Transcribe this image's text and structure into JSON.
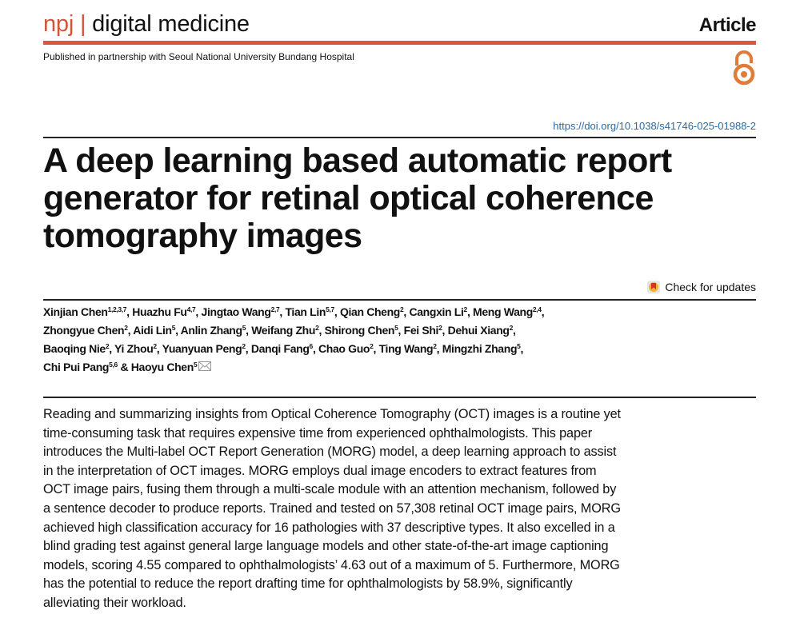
{
  "header": {
    "journal_prefix": "npj",
    "journal_separator": "|",
    "journal_name": "digital medicine",
    "article_type": "Article",
    "partnership": "Published in partnership with Seoul National University Bundang Hospital",
    "open_access_icon": "open-access-lock-icon",
    "accent_color": "#d9593e",
    "doi": "https://doi.org/10.1038/s41746-025-01988-2"
  },
  "title_lines": [
    "A deep learning based automatic report",
    "generator for retinal optical coherence",
    "tomography images"
  ],
  "check_updates": "Check for updates",
  "authors": [
    [
      {
        "name": "Xinjian Chen",
        "sup": "1,2,3,7"
      },
      {
        "name": "Huazhu Fu",
        "sup": "4,7"
      },
      {
        "name": "Jingtao Wang",
        "sup": "2,7"
      },
      {
        "name": "Tian Lin",
        "sup": "5,7"
      },
      {
        "name": "Qian Cheng",
        "sup": "2"
      },
      {
        "name": "Cangxin Li",
        "sup": "2"
      },
      {
        "name": "Meng Wang",
        "sup": "2,4"
      }
    ],
    [
      {
        "name": "Zhongyue Chen",
        "sup": "2"
      },
      {
        "name": "Aidi Lin",
        "sup": "5"
      },
      {
        "name": "Anlin Zhang",
        "sup": "5"
      },
      {
        "name": "Weifang Zhu",
        "sup": "2"
      },
      {
        "name": "Shirong Chen",
        "sup": "5"
      },
      {
        "name": "Fei Shi",
        "sup": "2"
      },
      {
        "name": "Dehui Xiang",
        "sup": "2"
      }
    ],
    [
      {
        "name": "Baoqing Nie",
        "sup": "2"
      },
      {
        "name": "Yi Zhou",
        "sup": "2"
      },
      {
        "name": "Yuanyuan Peng",
        "sup": "2"
      },
      {
        "name": "Danqi Fang",
        "sup": "6"
      },
      {
        "name": "Chao Guo",
        "sup": "2"
      },
      {
        "name": "Ting Wang",
        "sup": "2"
      },
      {
        "name": "Mingzhi Zhang",
        "sup": "5"
      }
    ],
    [
      {
        "name": "Chi Pui Pang",
        "sup": "5,6"
      },
      {
        "name": "Haoyu Chen",
        "sup": "5"
      }
    ]
  ],
  "abstract_lines": [
    "Reading and summarizing insights from Optical Coherence Tomography (OCT) images is a routine yet",
    "time-consuming task that requires expensive time from experienced ophthalmologists. This paper",
    "introduces the Multi-label OCT Report Generation (MORG) model, a deep learning approach to assist",
    "in the interpretation of OCT images. MORG employs dual image encoders to extract features from",
    "OCT image pairs, fusing them through a multi-scale module with an attention mechanism, followed by",
    "a sentence decoder to produce reports. Trained and tested on 57,308 retinal OCT image pairs, MORG",
    "achieved high classification accuracy for 16 pathologies with 37 descriptive types. It also excelled in a",
    "blind grading test against general large language models and other state-of-the-art image captioning",
    "models, scoring 4.55 compared to ophthalmologists’ 4.63 out of a maximum of 5. Furthermore, MORG",
    "has the potential to reduce the report drafting time for ophthalmologists by 58.9%, significantly",
    "alleviating their workload."
  ]
}
